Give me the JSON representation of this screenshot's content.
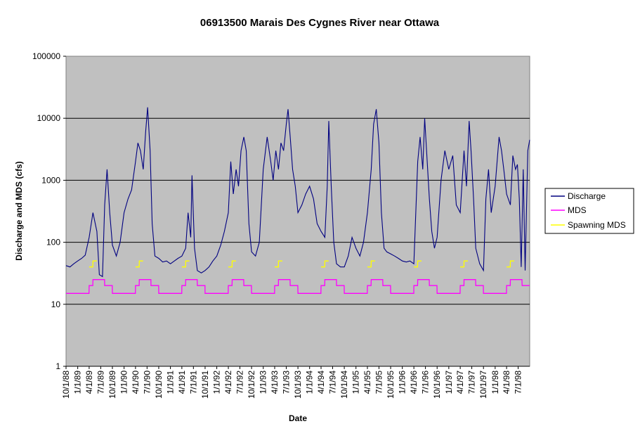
{
  "chart_data": {
    "type": "line",
    "title": "06913500 Marais Des Cygnes River near Ottawa",
    "xlabel": "Date",
    "ylabel": "Discharge and MDS (cfs)",
    "y_scale": "log",
    "ylim": [
      1,
      100000
    ],
    "y_ticks": [
      "1",
      "10",
      "100",
      "1000",
      "10000",
      "100000"
    ],
    "xlim": [
      "1988-10-01",
      "1998-09-30"
    ],
    "x_ticks": [
      "10/1/88",
      "1/1/89",
      "4/1/89",
      "7/1/89",
      "10/1/89",
      "1/1/90",
      "4/1/90",
      "7/1/90",
      "10/1/90",
      "1/1/91",
      "4/1/91",
      "7/1/91",
      "10/1/91",
      "1/1/92",
      "4/1/92",
      "7/1/92",
      "10/1/92",
      "1/1/93",
      "4/1/93",
      "7/1/93",
      "10/1/93",
      "1/1/94",
      "4/1/94",
      "7/1/94",
      "10/1/94",
      "1/1/95",
      "4/1/95",
      "7/1/95",
      "10/1/95",
      "1/1/96",
      "4/1/96",
      "7/1/96",
      "10/1/96",
      "1/1/97",
      "4/1/97",
      "7/1/97",
      "10/1/97",
      "1/1/98",
      "4/1/98",
      "7/1/98"
    ],
    "grid": "horizontal major lines",
    "background": "#c0c0c0",
    "legend": "right",
    "series": [
      {
        "name": "Discharge",
        "color": "#000080",
        "points": [
          [
            "1988-10-01",
            42
          ],
          [
            "1988-11-01",
            40
          ],
          [
            "1988-12-01",
            45
          ],
          [
            "1989-01-01",
            50
          ],
          [
            "1989-02-01",
            55
          ],
          [
            "1989-03-01",
            62
          ],
          [
            "1989-04-01",
            120
          ],
          [
            "1989-05-01",
            300
          ],
          [
            "1989-06-01",
            150
          ],
          [
            "1989-06-20",
            30
          ],
          [
            "1989-07-15",
            28
          ],
          [
            "1989-08-01",
            400
          ],
          [
            "1989-08-20",
            1500
          ],
          [
            "1989-09-10",
            300
          ],
          [
            "1989-10-01",
            90
          ],
          [
            "1989-11-01",
            60
          ],
          [
            "1989-12-01",
            100
          ],
          [
            "1990-01-01",
            300
          ],
          [
            "1990-02-01",
            500
          ],
          [
            "1990-03-01",
            700
          ],
          [
            "1990-04-01",
            2000
          ],
          [
            "1990-04-20",
            4000
          ],
          [
            "1990-05-10",
            3000
          ],
          [
            "1990-06-01",
            1500
          ],
          [
            "1990-06-20",
            6000
          ],
          [
            "1990-07-05",
            15000
          ],
          [
            "1990-07-25",
            3000
          ],
          [
            "1990-08-10",
            200
          ],
          [
            "1990-09-01",
            60
          ],
          [
            "1990-10-01",
            55
          ],
          [
            "1990-11-01",
            48
          ],
          [
            "1990-12-01",
            50
          ],
          [
            "1991-01-01",
            45
          ],
          [
            "1991-02-01",
            50
          ],
          [
            "1991-03-01",
            55
          ],
          [
            "1991-04-01",
            60
          ],
          [
            "1991-05-01",
            80
          ],
          [
            "1991-05-20",
            300
          ],
          [
            "1991-06-10",
            120
          ],
          [
            "1991-06-20",
            1200
          ],
          [
            "1991-07-10",
            80
          ],
          [
            "1991-08-01",
            35
          ],
          [
            "1991-09-01",
            32
          ],
          [
            "1991-10-01",
            35
          ],
          [
            "1991-11-01",
            40
          ],
          [
            "1991-12-01",
            50
          ],
          [
            "1992-01-01",
            60
          ],
          [
            "1992-02-01",
            90
          ],
          [
            "1992-03-01",
            150
          ],
          [
            "1992-04-01",
            300
          ],
          [
            "1992-04-20",
            2000
          ],
          [
            "1992-05-10",
            600
          ],
          [
            "1992-06-01",
            1500
          ],
          [
            "1992-06-20",
            800
          ],
          [
            "1992-07-10",
            3000
          ],
          [
            "1992-08-01",
            5000
          ],
          [
            "1992-08-20",
            3000
          ],
          [
            "1992-09-10",
            200
          ],
          [
            "1992-10-01",
            70
          ],
          [
            "1992-11-01",
            60
          ],
          [
            "1992-12-01",
            100
          ],
          [
            "1993-01-01",
            1500
          ],
          [
            "1993-02-01",
            5000
          ],
          [
            "1993-03-01",
            2000
          ],
          [
            "1993-03-20",
            1000
          ],
          [
            "1993-04-10",
            3000
          ],
          [
            "1993-05-01",
            1500
          ],
          [
            "1993-05-20",
            4000
          ],
          [
            "1993-06-10",
            3000
          ],
          [
            "1993-07-01",
            8000
          ],
          [
            "1993-07-15",
            14000
          ],
          [
            "1993-08-01",
            5000
          ],
          [
            "1993-08-20",
            1500
          ],
          [
            "1993-09-10",
            800
          ],
          [
            "1993-10-01",
            300
          ],
          [
            "1993-11-01",
            400
          ],
          [
            "1993-12-01",
            600
          ],
          [
            "1994-01-01",
            800
          ],
          [
            "1994-02-01",
            500
          ],
          [
            "1994-03-01",
            200
          ],
          [
            "1994-04-01",
            150
          ],
          [
            "1994-05-01",
            120
          ],
          [
            "1994-05-20",
            800
          ],
          [
            "1994-06-01",
            9000
          ],
          [
            "1994-06-20",
            800
          ],
          [
            "1994-07-10",
            100
          ],
          [
            "1994-08-01",
            45
          ],
          [
            "1994-09-01",
            40
          ],
          [
            "1994-10-01",
            40
          ],
          [
            "1994-11-01",
            60
          ],
          [
            "1994-12-01",
            120
          ],
          [
            "1995-01-01",
            80
          ],
          [
            "1995-02-01",
            60
          ],
          [
            "1995-03-01",
            100
          ],
          [
            "1995-04-01",
            300
          ],
          [
            "1995-05-01",
            1500
          ],
          [
            "1995-05-20",
            8000
          ],
          [
            "1995-06-10",
            14000
          ],
          [
            "1995-07-01",
            4000
          ],
          [
            "1995-07-20",
            300
          ],
          [
            "1995-08-10",
            80
          ],
          [
            "1995-09-01",
            70
          ],
          [
            "1995-10-01",
            65
          ],
          [
            "1995-11-01",
            60
          ],
          [
            "1995-12-01",
            55
          ],
          [
            "1996-01-01",
            50
          ],
          [
            "1996-02-01",
            48
          ],
          [
            "1996-03-01",
            50
          ],
          [
            "1996-04-01",
            45
          ],
          [
            "1996-05-01",
            2000
          ],
          [
            "1996-05-20",
            5000
          ],
          [
            "1996-06-10",
            1500
          ],
          [
            "1996-06-25",
            10000
          ],
          [
            "1996-07-15",
            2000
          ],
          [
            "1996-08-01",
            500
          ],
          [
            "1996-08-20",
            150
          ],
          [
            "1996-09-10",
            80
          ],
          [
            "1996-10-01",
            120
          ],
          [
            "1996-11-01",
            1000
          ],
          [
            "1996-12-01",
            3000
          ],
          [
            "1997-01-01",
            1500
          ],
          [
            "1997-02-01",
            2500
          ],
          [
            "1997-03-01",
            400
          ],
          [
            "1997-04-01",
            300
          ],
          [
            "1997-05-01",
            3000
          ],
          [
            "1997-05-20",
            800
          ],
          [
            "1997-06-10",
            9000
          ],
          [
            "1997-06-25",
            3000
          ],
          [
            "1997-07-15",
            500
          ],
          [
            "1997-08-01",
            80
          ],
          [
            "1997-09-01",
            45
          ],
          [
            "1997-10-01",
            35
          ],
          [
            "1997-10-20",
            500
          ],
          [
            "1997-11-10",
            1500
          ],
          [
            "1997-12-01",
            300
          ],
          [
            "1998-01-01",
            800
          ],
          [
            "1998-02-01",
            5000
          ],
          [
            "1998-02-20",
            3000
          ],
          [
            "1998-03-10",
            1500
          ],
          [
            "1998-04-01",
            600
          ],
          [
            "1998-05-01",
            400
          ],
          [
            "1998-05-20",
            2500
          ],
          [
            "1998-06-10",
            1500
          ],
          [
            "1998-06-25",
            1800
          ],
          [
            "1998-07-10",
            500
          ],
          [
            "1998-07-25",
            40
          ],
          [
            "1998-08-10",
            1500
          ],
          [
            "1998-08-25",
            35
          ],
          [
            "1998-09-15",
            3000
          ],
          [
            "1998-09-30",
            4500
          ]
        ]
      },
      {
        "name": "MDS",
        "color": "#ff00ff",
        "style": "step",
        "points": [
          [
            "1988-10-01",
            15
          ],
          [
            "1989-03-31",
            15
          ],
          [
            "1989-04-01",
            20
          ],
          [
            "1989-04-30",
            20
          ],
          [
            "1989-05-01",
            25
          ],
          [
            "1989-07-31",
            25
          ],
          [
            "1989-08-01",
            20
          ],
          [
            "1989-09-30",
            20
          ],
          [
            "1989-10-01",
            15
          ],
          [
            "1990-03-31",
            15
          ],
          [
            "1990-04-01",
            20
          ],
          [
            "1990-04-30",
            20
          ],
          [
            "1990-05-01",
            25
          ],
          [
            "1990-07-31",
            25
          ],
          [
            "1990-08-01",
            20
          ],
          [
            "1990-09-30",
            20
          ],
          [
            "1990-10-01",
            15
          ],
          [
            "1991-03-31",
            15
          ],
          [
            "1991-04-01",
            20
          ],
          [
            "1991-04-30",
            20
          ],
          [
            "1991-05-01",
            25
          ],
          [
            "1991-07-31",
            25
          ],
          [
            "1991-08-01",
            20
          ],
          [
            "1991-09-30",
            20
          ],
          [
            "1991-10-01",
            15
          ],
          [
            "1992-03-31",
            15
          ],
          [
            "1992-04-01",
            20
          ],
          [
            "1992-04-30",
            20
          ],
          [
            "1992-05-01",
            25
          ],
          [
            "1992-07-31",
            25
          ],
          [
            "1992-08-01",
            20
          ],
          [
            "1992-09-30",
            20
          ],
          [
            "1992-10-01",
            15
          ],
          [
            "1993-03-31",
            15
          ],
          [
            "1993-04-01",
            20
          ],
          [
            "1993-04-30",
            20
          ],
          [
            "1993-05-01",
            25
          ],
          [
            "1993-07-31",
            25
          ],
          [
            "1993-08-01",
            20
          ],
          [
            "1993-09-30",
            20
          ],
          [
            "1993-10-01",
            15
          ],
          [
            "1994-03-31",
            15
          ],
          [
            "1994-04-01",
            20
          ],
          [
            "1994-04-30",
            20
          ],
          [
            "1994-05-01",
            25
          ],
          [
            "1994-07-31",
            25
          ],
          [
            "1994-08-01",
            20
          ],
          [
            "1994-09-30",
            20
          ],
          [
            "1994-10-01",
            15
          ],
          [
            "1995-03-31",
            15
          ],
          [
            "1995-04-01",
            20
          ],
          [
            "1995-04-30",
            20
          ],
          [
            "1995-05-01",
            25
          ],
          [
            "1995-07-31",
            25
          ],
          [
            "1995-08-01",
            20
          ],
          [
            "1995-09-30",
            20
          ],
          [
            "1995-10-01",
            15
          ],
          [
            "1996-03-31",
            15
          ],
          [
            "1996-04-01",
            20
          ],
          [
            "1996-04-30",
            20
          ],
          [
            "1996-05-01",
            25
          ],
          [
            "1996-07-31",
            25
          ],
          [
            "1996-08-01",
            20
          ],
          [
            "1996-09-30",
            20
          ],
          [
            "1996-10-01",
            15
          ],
          [
            "1997-03-31",
            15
          ],
          [
            "1997-04-01",
            20
          ],
          [
            "1997-04-30",
            20
          ],
          [
            "1997-05-01",
            25
          ],
          [
            "1997-07-31",
            25
          ],
          [
            "1997-08-01",
            20
          ],
          [
            "1997-09-30",
            20
          ],
          [
            "1997-10-01",
            15
          ],
          [
            "1998-03-31",
            15
          ],
          [
            "1998-04-01",
            20
          ],
          [
            "1998-04-30",
            20
          ],
          [
            "1998-05-01",
            25
          ],
          [
            "1998-07-31",
            25
          ],
          [
            "1998-08-01",
            20
          ],
          [
            "1998-09-30",
            20
          ]
        ]
      },
      {
        "name": "Spawning MDS",
        "color": "#ffff00",
        "style": "step",
        "points": [
          [
            "1989-04-01",
            40
          ],
          [
            "1989-04-30",
            40
          ],
          [
            "1989-05-01",
            50
          ],
          [
            "1989-05-31",
            50
          ],
          [
            "1990-04-01",
            40
          ],
          [
            "1990-04-30",
            40
          ],
          [
            "1990-05-01",
            50
          ],
          [
            "1990-05-31",
            50
          ],
          [
            "1991-04-01",
            40
          ],
          [
            "1991-04-30",
            40
          ],
          [
            "1991-05-01",
            50
          ],
          [
            "1991-05-31",
            50
          ],
          [
            "1992-04-01",
            40
          ],
          [
            "1992-04-30",
            40
          ],
          [
            "1992-05-01",
            50
          ],
          [
            "1992-05-31",
            50
          ],
          [
            "1993-04-01",
            40
          ],
          [
            "1993-04-30",
            40
          ],
          [
            "1993-05-01",
            50
          ],
          [
            "1993-05-31",
            50
          ],
          [
            "1994-04-01",
            40
          ],
          [
            "1994-04-30",
            40
          ],
          [
            "1994-05-01",
            50
          ],
          [
            "1994-05-31",
            50
          ],
          [
            "1995-04-01",
            40
          ],
          [
            "1995-04-30",
            40
          ],
          [
            "1995-05-01",
            50
          ],
          [
            "1995-05-31",
            50
          ],
          [
            "1996-04-01",
            40
          ],
          [
            "1996-04-30",
            40
          ],
          [
            "1996-05-01",
            50
          ],
          [
            "1996-05-31",
            50
          ],
          [
            "1997-04-01",
            40
          ],
          [
            "1997-04-30",
            40
          ],
          [
            "1997-05-01",
            50
          ],
          [
            "1997-05-31",
            50
          ],
          [
            "1998-04-01",
            40
          ],
          [
            "1998-04-30",
            40
          ],
          [
            "1998-05-01",
            50
          ],
          [
            "1998-05-31",
            50
          ]
        ]
      }
    ]
  }
}
